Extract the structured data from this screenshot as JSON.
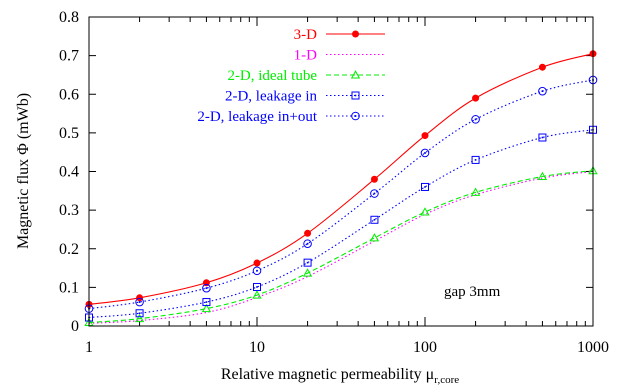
{
  "chart_data": {
    "type": "line",
    "x_scale": "log",
    "xlim": [
      1,
      1000
    ],
    "ylim": [
      0,
      0.8
    ],
    "x_ticks": [
      "1",
      "10",
      "100",
      "1000"
    ],
    "y_ticks": [
      "0",
      "0.1",
      "0.2",
      "0.3",
      "0.4",
      "0.5",
      "0.6",
      "0.7",
      "0.8"
    ],
    "xlabel": "Relative magnetic permeability μ",
    "xlabel_sub": "r,core",
    "ylabel": "Magnetic flux Φ (mWb)",
    "annotation": "gap 3mm",
    "legend_position": "top-right",
    "x": [
      1,
      2,
      5,
      10,
      20,
      50,
      100,
      200,
      500,
      1000
    ],
    "series": [
      {
        "name": "3-D",
        "color": "#ff0000",
        "dash": "solid",
        "marker": "filled-circle",
        "values": [
          0.056,
          0.073,
          0.112,
          0.163,
          0.24,
          0.38,
          0.493,
          0.59,
          0.67,
          0.705
        ]
      },
      {
        "name": "1-D",
        "color": "#ff00ff",
        "dash": "dotted",
        "marker": "none",
        "values": [
          0.007,
          0.014,
          0.035,
          0.074,
          0.128,
          0.22,
          0.289,
          0.34,
          0.383,
          0.4
        ]
      },
      {
        "name": "2-D, ideal tube",
        "color": "#00ee00",
        "dash": "dashed",
        "marker": "triangle",
        "values": [
          0.009,
          0.019,
          0.045,
          0.08,
          0.137,
          0.228,
          0.295,
          0.346,
          0.387,
          0.402
        ]
      },
      {
        "name": "2-D, leakage in",
        "color": "#0000ff",
        "dash": "dotted",
        "marker": "square",
        "values": [
          0.022,
          0.033,
          0.062,
          0.101,
          0.164,
          0.275,
          0.36,
          0.43,
          0.488,
          0.508
        ]
      },
      {
        "name": "2-D, leakage in+out",
        "color": "#0000ff",
        "dash": "dotted",
        "marker": "dotted-circle",
        "values": [
          0.045,
          0.062,
          0.098,
          0.143,
          0.213,
          0.343,
          0.448,
          0.535,
          0.608,
          0.637
        ]
      }
    ]
  }
}
